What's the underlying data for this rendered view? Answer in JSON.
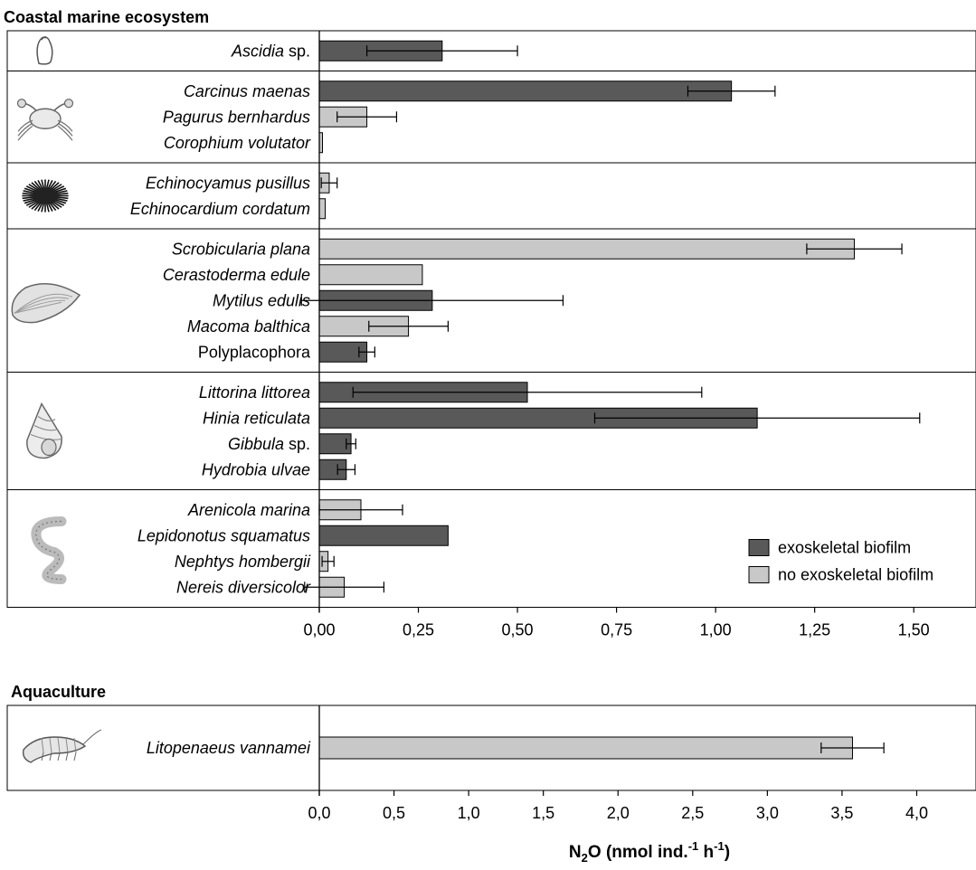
{
  "colors": {
    "exoskeletal": "#595959",
    "no_exoskeletal": "#c8c8c8",
    "bar_edge": "#000000"
  },
  "chart_data": [
    {
      "type": "bar",
      "orientation": "horizontal",
      "title": "Coastal marine ecosystem",
      "xlim": [
        0,
        1.6
      ],
      "xticks": [
        "0,00",
        "0,25",
        "0,50",
        "0,75",
        "1,00",
        "1,25",
        "1,50"
      ],
      "tick_values": [
        0,
        0.25,
        0.5,
        0.75,
        1.0,
        1.25,
        1.5
      ],
      "legend": {
        "placement": "bottom-right",
        "entries": [
          {
            "label": "exoskeletal biofilm",
            "key": "exoskeletal"
          },
          {
            "label": "no exoskeletal biofilm",
            "key": "no_exoskeletal"
          }
        ]
      },
      "groups": [
        {
          "icon": "sea-squirt-icon",
          "rows": [
            {
              "label": "Ascidia",
              "suffix": " sp.",
              "value": 0.31,
              "err": 0.19,
              "key": "exoskeletal"
            }
          ]
        },
        {
          "icon": "crab-icon",
          "rows": [
            {
              "label": "Carcinus maenas",
              "suffix": "",
              "value": 1.04,
              "err": 0.11,
              "key": "exoskeletal"
            },
            {
              "label": "Pagurus bernhardus",
              "suffix": "",
              "value": 0.12,
              "err": 0.075,
              "key": "no_exoskeletal"
            },
            {
              "label": "Corophium volutator",
              "suffix": "",
              "value": 0.008,
              "err": 0,
              "key": "no_exoskeletal"
            }
          ]
        },
        {
          "icon": "sea-urchin-icon",
          "rows": [
            {
              "label": "Echinocyamus pusillus",
              "suffix": "",
              "value": 0.025,
              "err": 0.02,
              "key": "no_exoskeletal"
            },
            {
              "label": "Echinocardium cordatum",
              "suffix": "",
              "value": 0.015,
              "err": 0,
              "key": "no_exoskeletal"
            }
          ]
        },
        {
          "icon": "mussel-icon",
          "rows": [
            {
              "label": "Scrobicularia plana",
              "suffix": "",
              "value": 1.35,
              "err": 0.12,
              "key": "no_exoskeletal"
            },
            {
              "label": "Cerastoderma edule",
              "suffix": "",
              "value": 0.26,
              "err": 0,
              "key": "no_exoskeletal"
            },
            {
              "label": "Mytilus edulis",
              "suffix": "",
              "value": 0.285,
              "err": 0.33,
              "key": "exoskeletal"
            },
            {
              "label": "Macoma balthica",
              "suffix": "",
              "value": 0.225,
              "err": 0.1,
              "key": "no_exoskeletal"
            },
            {
              "label": "Polyplacophora",
              "suffix": "",
              "value": 0.12,
              "err": 0.02,
              "key": "exoskeletal",
              "roman": true
            }
          ]
        },
        {
          "icon": "snail-icon",
          "rows": [
            {
              "label": "Littorina littorea",
              "suffix": "",
              "value": 0.525,
              "err": 0.44,
              "key": "exoskeletal"
            },
            {
              "label": "Hinia reticulata",
              "suffix": "",
              "value": 1.105,
              "err": 0.41,
              "key": "exoskeletal"
            },
            {
              "label": "Gibbula",
              "suffix": " sp.",
              "value": 0.08,
              "err": 0.012,
              "key": "exoskeletal"
            },
            {
              "label": "Hydrobia ulvae",
              "suffix": "",
              "value": 0.068,
              "err": 0.022,
              "key": "exoskeletal"
            }
          ]
        },
        {
          "icon": "worm-icon",
          "rows": [
            {
              "label": "Arenicola marina",
              "suffix": "",
              "value": 0.105,
              "err": 0.105,
              "key": "no_exoskeletal"
            },
            {
              "label": "Lepidonotus squamatus",
              "suffix": "",
              "value": 0.325,
              "err": 0,
              "key": "exoskeletal"
            },
            {
              "label": "Nephtys hombergii",
              "suffix": "",
              "value": 0.022,
              "err": 0.015,
              "key": "no_exoskeletal"
            },
            {
              "label": "Nereis diversicolor",
              "suffix": "",
              "value": 0.063,
              "err": 0.1,
              "key": "no_exoskeletal"
            }
          ]
        }
      ]
    },
    {
      "type": "bar",
      "orientation": "horizontal",
      "title": "Aquaculture",
      "xlim": [
        0,
        4.2
      ],
      "xticks": [
        "0,0",
        "0,5",
        "1,0",
        "1,5",
        "2,0",
        "2,5",
        "3,0",
        "3,5",
        "4,0"
      ],
      "tick_values": [
        0,
        0.5,
        1.0,
        1.5,
        2.0,
        2.5,
        3.0,
        3.5,
        4.0
      ],
      "xlabel": {
        "main": "N",
        "sub": "2",
        "mid": "O (nmol ind.",
        "sup1": "-1",
        "mid2": " h",
        "sup2": "-1",
        "end": ")"
      },
      "groups": [
        {
          "icon": "shrimp-icon",
          "rows": [
            {
              "label": "Litopenaeus vannamei",
              "suffix": "",
              "value": 3.57,
              "err": 0.21,
              "key": "no_exoskeletal"
            }
          ]
        }
      ]
    }
  ]
}
